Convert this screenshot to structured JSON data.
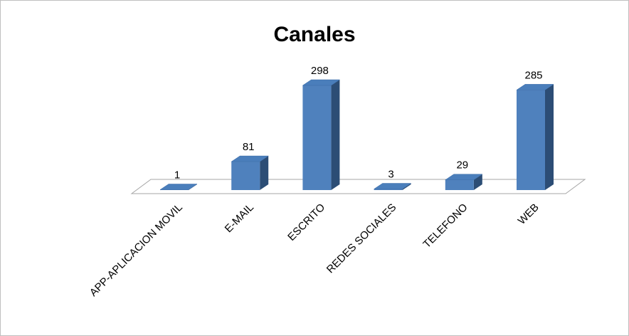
{
  "chart_data": {
    "type": "bar3d",
    "title": "Canales",
    "categories": [
      "APP-APLICACION MOVIL",
      "E-MAIL",
      "ESCRITO",
      "REDES SOCIALES",
      "TELEFONO",
      "WEB"
    ],
    "values": [
      1,
      81,
      298,
      3,
      29,
      285
    ],
    "color": "#4f81bd"
  }
}
